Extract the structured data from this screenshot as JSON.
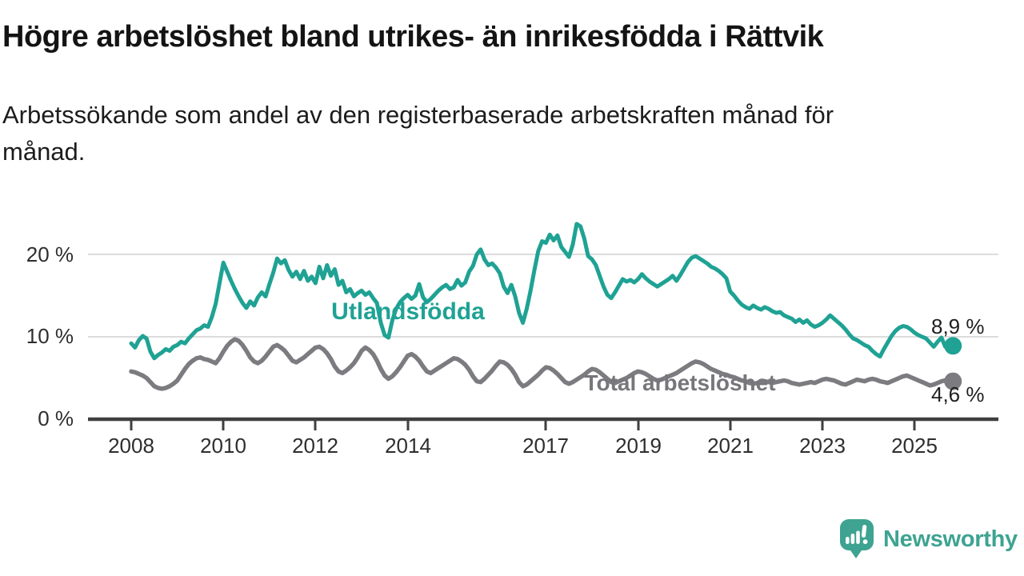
{
  "header": {
    "title": "Högre arbetslöshet bland utrikes- än inrikesfödda i Rättvik",
    "subtitle_line1": "Arbetssökande som andel av den registerbaserade arbetskraften månad för",
    "subtitle_line2": "månad."
  },
  "colors": {
    "foreign_series": "#1fa294",
    "total_series": "#7b7b80",
    "total_label": "#76767b",
    "grid": "#dcdcdc",
    "axis": "#3f3f3f",
    "end_label": "#1f1f1f",
    "brand_teal": "#3ea391"
  },
  "chart_data": {
    "type": "line",
    "title": "Högre arbetslöshet bland utrikes- än inrikesfödda i Rättvik",
    "xlabel": "",
    "ylabel": "Arbetssökande som andel av den registerbaserade arbetskraften",
    "frequency": "monthly",
    "x_start": "2008-01",
    "x_end": "2025-11",
    "ylim": [
      0,
      24.5
    ],
    "grid": "horizontal",
    "y_tick_labels": [
      "0 %",
      "10 %",
      "20 %"
    ],
    "x_tick_labels": [
      "2008",
      "2010",
      "2012",
      "2014",
      "2017",
      "2019",
      "2021",
      "2023",
      "2025"
    ],
    "series": [
      {
        "name": "Total arbetslöshet",
        "end_label": "4,6 %",
        "last_value": 4.6,
        "values": [
          5.8,
          5.7,
          5.5,
          5.3,
          5.0,
          4.5,
          4.0,
          3.8,
          3.7,
          3.8,
          4.0,
          4.3,
          4.7,
          5.4,
          6.1,
          6.7,
          7.1,
          7.4,
          7.5,
          7.3,
          7.2,
          7.0,
          6.8,
          7.4,
          8.2,
          8.9,
          9.4,
          9.7,
          9.5,
          9.0,
          8.3,
          7.5,
          7.0,
          6.8,
          7.1,
          7.6,
          8.2,
          8.8,
          9.0,
          8.7,
          8.3,
          7.7,
          7.1,
          6.9,
          7.2,
          7.5,
          7.9,
          8.3,
          8.7,
          8.8,
          8.5,
          8.0,
          7.3,
          6.4,
          5.8,
          5.6,
          5.9,
          6.3,
          6.8,
          7.5,
          8.3,
          8.7,
          8.4,
          7.9,
          7.1,
          6.1,
          5.3,
          4.9,
          5.2,
          5.7,
          6.3,
          7.0,
          7.7,
          7.9,
          7.6,
          7.1,
          6.4,
          5.8,
          5.6,
          5.9,
          6.2,
          6.5,
          6.8,
          7.1,
          7.4,
          7.3,
          7.0,
          6.6,
          6.0,
          5.2,
          4.6,
          4.5,
          4.9,
          5.4,
          5.9,
          6.5,
          7.0,
          6.9,
          6.6,
          6.1,
          5.4,
          4.5,
          4.0,
          4.2,
          4.6,
          5.0,
          5.4,
          5.9,
          6.3,
          6.2,
          5.9,
          5.5,
          5.0,
          4.5,
          4.3,
          4.5,
          4.8,
          5.1,
          5.4,
          5.8,
          6.1,
          6.0,
          5.7,
          5.3,
          4.9,
          4.5,
          4.4,
          4.6,
          4.8,
          5.0,
          5.3,
          5.6,
          5.8,
          5.7,
          5.5,
          5.2,
          4.9,
          4.7,
          4.8,
          5.0,
          5.2,
          5.4,
          5.6,
          5.9,
          6.2,
          6.5,
          6.8,
          7.0,
          6.9,
          6.7,
          6.4,
          6.1,
          5.9,
          5.7,
          5.5,
          5.4,
          5.2,
          5.1,
          4.9,
          4.7,
          4.6,
          4.4,
          4.3,
          4.4,
          4.5,
          4.6,
          4.5,
          4.4,
          4.5,
          4.6,
          4.7,
          4.6,
          4.4,
          4.3,
          4.2,
          4.3,
          4.4,
          4.5,
          4.4,
          4.6,
          4.8,
          4.9,
          4.8,
          4.7,
          4.5,
          4.3,
          4.2,
          4.4,
          4.6,
          4.8,
          4.7,
          4.6,
          4.8,
          4.9,
          4.8,
          4.6,
          4.5,
          4.4,
          4.6,
          4.8,
          5.0,
          5.2,
          5.3,
          5.1,
          4.9,
          4.7,
          4.5,
          4.3,
          4.1,
          4.2,
          4.4,
          4.6,
          4.7,
          4.8,
          4.6
        ]
      },
      {
        "name": "Utlandsfödda",
        "end_label": "8,9 %",
        "last_value": 8.9,
        "values": [
          9.2,
          8.7,
          9.6,
          10.1,
          9.8,
          8.2,
          7.4,
          7.8,
          8.1,
          8.5,
          8.3,
          8.8,
          9.0,
          9.4,
          9.2,
          9.8,
          10.3,
          10.8,
          11.0,
          11.4,
          11.2,
          12.4,
          14.0,
          16.5,
          19.0,
          17.9,
          16.8,
          15.8,
          14.9,
          14.1,
          13.5,
          14.3,
          13.8,
          14.8,
          15.4,
          14.9,
          16.4,
          17.8,
          19.5,
          18.9,
          19.3,
          18.1,
          17.3,
          17.9,
          17.0,
          18.0,
          16.8,
          17.3,
          16.5,
          18.5,
          17.1,
          18.7,
          17.4,
          18.2,
          16.3,
          16.8,
          15.4,
          15.8,
          14.9,
          15.3,
          15.6,
          15.1,
          15.4,
          14.7,
          14.1,
          11.7,
          10.2,
          9.9,
          12.0,
          13.4,
          14.2,
          14.7,
          15.1,
          14.6,
          15.0,
          16.4,
          14.8,
          14.2,
          14.6,
          15.1,
          15.6,
          16.0,
          16.3,
          15.8,
          16.0,
          16.9,
          16.2,
          16.6,
          17.9,
          18.6,
          20.0,
          20.6,
          19.4,
          18.7,
          18.9,
          18.4,
          17.7,
          16.1,
          15.3,
          16.3,
          14.9,
          12.9,
          11.7,
          13.4,
          15.6,
          18.1,
          20.4,
          21.6,
          21.4,
          22.4,
          21.7,
          22.3,
          20.9,
          20.3,
          19.7,
          21.2,
          23.7,
          23.4,
          21.9,
          19.8,
          19.4,
          18.7,
          17.4,
          16.1,
          15.1,
          14.7,
          15.4,
          16.2,
          17.0,
          16.7,
          16.9,
          16.6,
          17.0,
          17.6,
          17.1,
          16.7,
          16.4,
          16.1,
          16.4,
          16.7,
          17.0,
          17.4,
          16.8,
          17.5,
          18.3,
          19.1,
          19.6,
          19.8,
          19.5,
          19.2,
          18.9,
          18.5,
          18.3,
          18.0,
          17.6,
          17.1,
          15.5,
          15.0,
          14.4,
          13.9,
          13.6,
          13.4,
          13.8,
          13.5,
          13.3,
          13.6,
          13.4,
          13.1,
          12.9,
          13.0,
          12.6,
          12.4,
          12.2,
          11.8,
          12.1,
          11.7,
          12.0,
          11.5,
          11.2,
          11.4,
          11.7,
          12.1,
          12.6,
          12.2,
          11.8,
          11.4,
          10.9,
          10.3,
          9.8,
          9.6,
          9.3,
          9.0,
          8.8,
          8.3,
          7.9,
          7.6,
          8.5,
          9.3,
          10.1,
          10.7,
          11.1,
          11.3,
          11.2,
          10.9,
          10.5,
          10.2,
          10.0,
          9.8,
          9.3,
          8.8,
          9.4,
          9.9,
          8.8,
          9.1,
          8.9
        ]
      }
    ]
  },
  "branding": {
    "logo_text": "Newsworthy",
    "logo_icon": "bar-chart-exclamation-speech-bubble"
  }
}
